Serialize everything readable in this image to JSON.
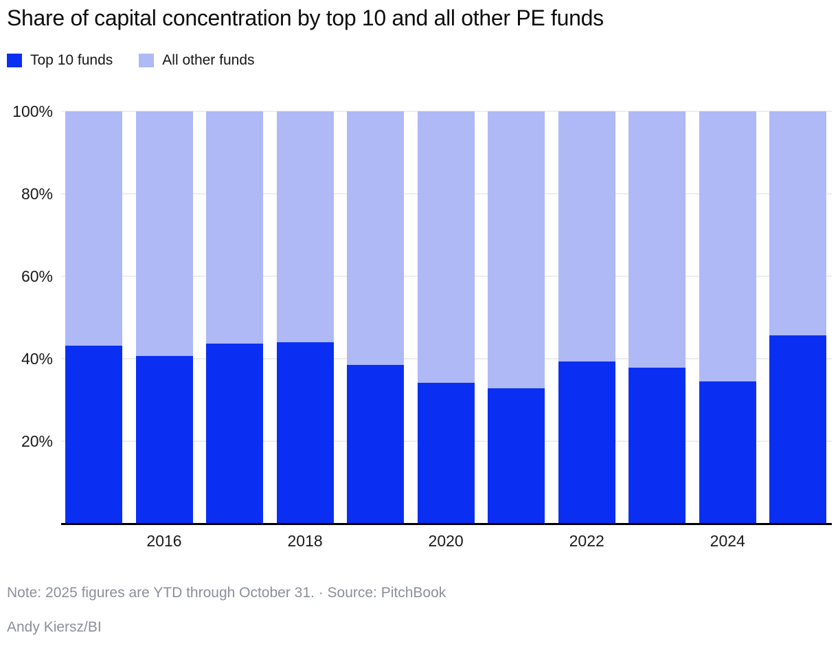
{
  "header": {
    "title": "Share of capital concentration by top 10 and all other PE funds"
  },
  "legend": {
    "items": [
      {
        "label": "Top 10 funds",
        "color": "#0b2ff2"
      },
      {
        "label": "All other funds",
        "color": "#aeb9f6"
      }
    ]
  },
  "chart_data": {
    "type": "bar",
    "stacked": true,
    "title": "Share of capital concentration by top 10 and all other PE funds",
    "categories": [
      2015,
      2016,
      2017,
      2018,
      2019,
      2020,
      2021,
      2022,
      2023,
      2024,
      2025
    ],
    "series": [
      {
        "name": "Top 10 funds",
        "color": "#0b2ff2",
        "values": [
          43.1,
          40.7,
          43.6,
          44.0,
          38.5,
          34.2,
          32.8,
          39.3,
          37.8,
          34.5,
          45.6
        ]
      },
      {
        "name": "All other funds",
        "color": "#aeb9f6",
        "values": [
          56.9,
          59.3,
          56.4,
          56.0,
          61.5,
          65.8,
          67.2,
          60.7,
          62.2,
          65.5,
          54.4
        ]
      }
    ],
    "xlabel": "",
    "ylabel": "",
    "ylim": [
      0,
      100
    ],
    "y_tick_values": [
      20,
      40,
      60,
      80,
      100
    ],
    "y_tick_labels": [
      "20%",
      "40%",
      "60%",
      "80%",
      "100%"
    ],
    "x_tick_labels": [
      "2016",
      "2018",
      "2020",
      "2022",
      "2024"
    ],
    "grid": "horizontal",
    "gridline_color": "#ededed",
    "axis_line_color": "#000000",
    "legend_position": "top-left"
  },
  "footer": {
    "note": "Note: 2025 figures are YTD through October 31. · Source: PitchBook",
    "credit": "Andy Kiersz/BI"
  }
}
